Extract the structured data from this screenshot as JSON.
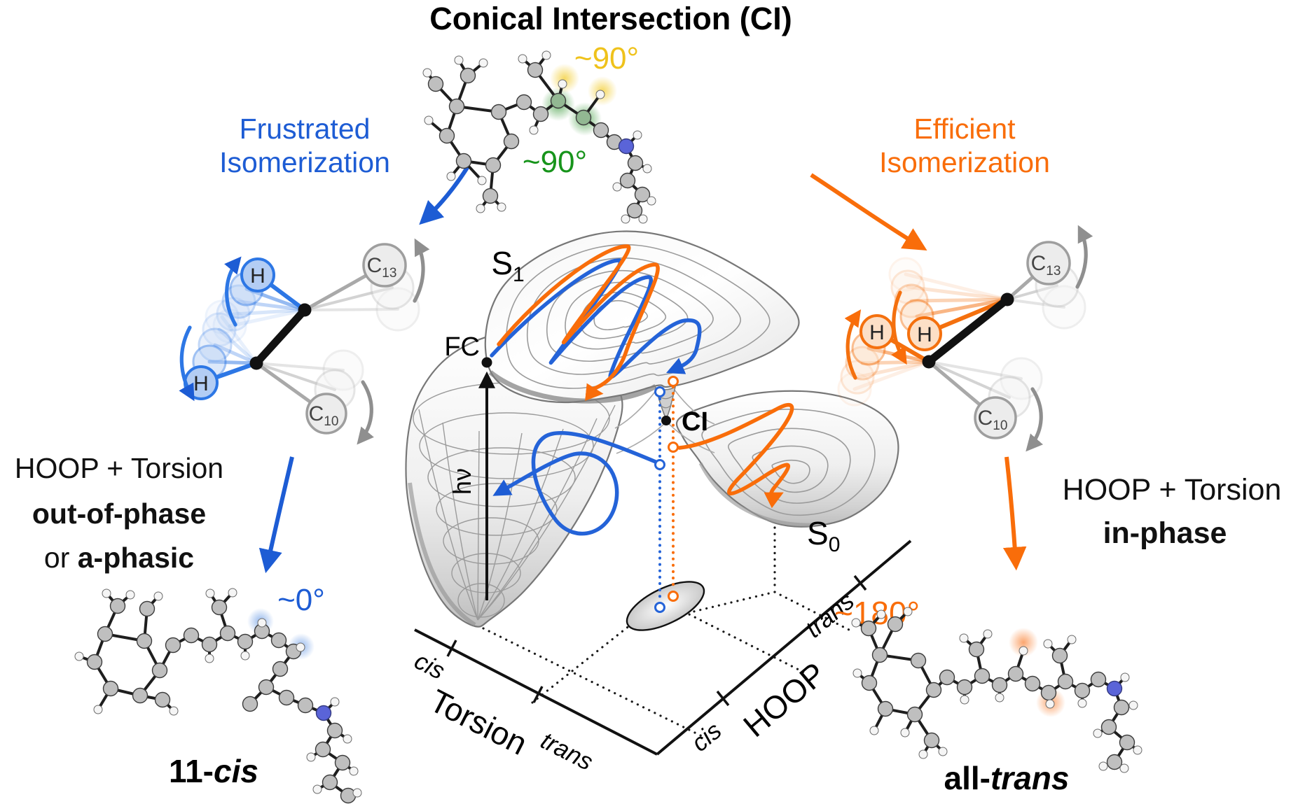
{
  "colors": {
    "blue": "#1d5cd4",
    "orange": "#f96d0a",
    "yellow": "#efc21b",
    "green": "#17941b",
    "surface_gray": "#9b9b9b"
  },
  "title": "Conical Intersection (CI)",
  "top_molecule": {
    "angle_yellow": "~90°",
    "angle_green": "~90°"
  },
  "branches": {
    "left": {
      "line1": "Frustrated",
      "line2": "Isomerization"
    },
    "right": {
      "line1": "Efficient",
      "line2": "Isomerization"
    }
  },
  "schematic": {
    "h": "H",
    "c": "C",
    "c13_sub": "13",
    "c10_sub": "10"
  },
  "outcomes": {
    "left": {
      "line1": "HOOP + Torsion",
      "line2": "out-of-phase",
      "line3_normal": "or ",
      "line3_bold": "a-phasic",
      "angle": "~0°",
      "product_prefix": "11-",
      "product_italic": "cis"
    },
    "right": {
      "line1": "HOOP + Torsion",
      "line2": "in-phase",
      "angle": "~180°",
      "product_prefix": "all-",
      "product_italic": "trans"
    }
  },
  "surface": {
    "s1": {
      "base": "S",
      "sub": "1"
    },
    "s0": {
      "base": "S",
      "sub": "0"
    },
    "fc": "FC",
    "ci": "CI",
    "hv": "hν",
    "axes": {
      "torsion": {
        "label": "Torsion",
        "near": "cis",
        "far": "trans"
      },
      "hoop": {
        "label": "HOOP",
        "near": "cis",
        "far": "trans"
      }
    }
  }
}
